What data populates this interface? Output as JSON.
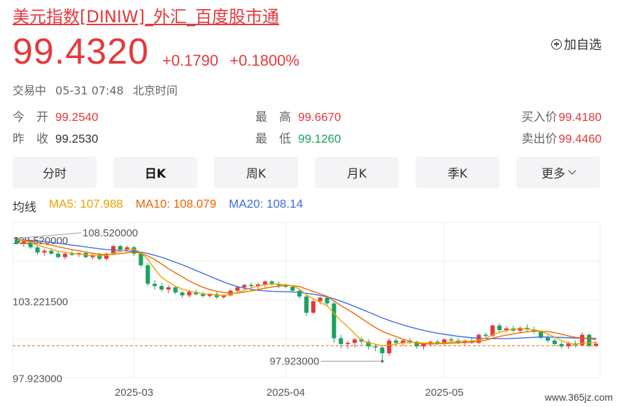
{
  "header": {
    "title": "美元指数[DINIW]_外汇_百度股市通",
    "price": "99.4320",
    "change": "+0.1790",
    "change_pct": "+0.1800%",
    "add_fav_label": "加自选"
  },
  "status": {
    "state": "交易中",
    "datetime": "05-31 07:48",
    "timezone": "北京时间"
  },
  "quotes": {
    "open_label": "今　开",
    "open": "99.2540",
    "prev_close_label": "昨　收",
    "prev_close": "99.2530",
    "high_label": "最　高",
    "high": "99.6670",
    "low_label": "最　低",
    "low": "99.1260",
    "bid_label": "买入价",
    "bid": "99.4180",
    "ask_label": "卖出价",
    "ask": "99.4460"
  },
  "tabs": [
    "分时",
    "日K",
    "周K",
    "月K",
    "季K",
    "更多"
  ],
  "active_tab": "日K",
  "ma": {
    "label": "均线",
    "ma5": "MA5: 107.988",
    "ma10": "MA10: 108.079",
    "ma20": "MA20: 108.14"
  },
  "colors": {
    "up": "#e4393c",
    "down": "#1aa35f",
    "ma5": "#f0a000",
    "ma10": "#f06400",
    "ma20": "#3c6ee6"
  },
  "watermark": "www.365jz.com",
  "chart_data": {
    "type": "candlestick",
    "ylim": [
      96.5,
      109.9
    ],
    "y_ticks": [
      "108.520000",
      "103.221500",
      "97.923000"
    ],
    "y_tick_values": [
      108.52,
      103.2215,
      97.923
    ],
    "x_ticks": [
      "2025-03",
      "2025-04",
      "2025-05"
    ],
    "x_tick_index": [
      17,
      39,
      62
    ],
    "max_label": "108.520000",
    "min_label": "97.923000",
    "max_index": 0,
    "min_index": 53,
    "reference_price": 99.253,
    "ohlc": [
      [
        108.45,
        108.52,
        108.0,
        108.1
      ],
      [
        108.05,
        108.3,
        107.8,
        108.25
      ],
      [
        108.2,
        108.3,
        107.6,
        107.75
      ],
      [
        107.75,
        107.9,
        107.1,
        107.3
      ],
      [
        107.3,
        107.6,
        107.0,
        107.45
      ],
      [
        107.45,
        107.7,
        107.1,
        107.2
      ],
      [
        107.2,
        107.4,
        106.8,
        106.9
      ],
      [
        106.9,
        107.3,
        106.7,
        107.2
      ],
      [
        107.2,
        107.5,
        107.0,
        107.1
      ],
      [
        107.1,
        107.3,
        106.9,
        107.25
      ],
      [
        107.25,
        107.4,
        106.8,
        106.9
      ],
      [
        106.9,
        107.2,
        106.7,
        107.1
      ],
      [
        107.1,
        107.3,
        106.6,
        106.75
      ],
      [
        106.75,
        107.3,
        106.6,
        107.2
      ],
      [
        107.2,
        108.0,
        107.1,
        107.85
      ],
      [
        107.85,
        108.0,
        107.4,
        107.55
      ],
      [
        107.55,
        107.9,
        107.4,
        107.75
      ],
      [
        107.75,
        107.9,
        107.0,
        107.2
      ],
      [
        107.2,
        107.4,
        106.0,
        106.2
      ],
      [
        106.2,
        106.4,
        104.4,
        104.6
      ],
      [
        104.6,
        104.9,
        104.1,
        104.4
      ],
      [
        104.4,
        104.7,
        103.9,
        104.1
      ],
      [
        104.1,
        104.5,
        103.8,
        104.3
      ],
      [
        104.3,
        104.4,
        103.7,
        103.85
      ],
      [
        103.85,
        104.0,
        103.4,
        103.6
      ],
      [
        103.6,
        104.1,
        103.4,
        103.9
      ],
      [
        103.9,
        104.1,
        103.6,
        103.7
      ],
      [
        103.7,
        103.9,
        103.4,
        103.55
      ],
      [
        103.55,
        103.8,
        103.4,
        103.7
      ],
      [
        103.7,
        103.9,
        103.3,
        103.45
      ],
      [
        103.45,
        103.7,
        103.3,
        103.6
      ],
      [
        103.6,
        104.1,
        103.5,
        104.0
      ],
      [
        104.0,
        104.4,
        103.9,
        104.3
      ],
      [
        104.3,
        104.6,
        104.1,
        104.5
      ],
      [
        104.5,
        104.7,
        104.2,
        104.4
      ],
      [
        104.4,
        104.7,
        104.1,
        104.55
      ],
      [
        104.55,
        104.9,
        104.3,
        104.8
      ],
      [
        104.8,
        104.9,
        104.4,
        104.6
      ],
      [
        104.6,
        104.8,
        104.2,
        104.45
      ],
      [
        104.45,
        104.6,
        104.2,
        104.35
      ],
      [
        104.35,
        104.5,
        103.9,
        104.0
      ],
      [
        104.0,
        104.2,
        103.3,
        103.5
      ],
      [
        103.5,
        103.7,
        101.8,
        102.1
      ],
      [
        102.1,
        103.3,
        102.0,
        103.1
      ],
      [
        103.1,
        103.5,
        102.8,
        103.4
      ],
      [
        103.4,
        103.5,
        102.7,
        102.9
      ],
      [
        102.9,
        103.1,
        99.5,
        99.9
      ],
      [
        99.9,
        100.2,
        99.0,
        99.4
      ],
      [
        99.4,
        99.7,
        99.0,
        99.5
      ],
      [
        99.5,
        99.9,
        99.1,
        99.8
      ],
      [
        99.8,
        100.0,
        99.3,
        99.6
      ],
      [
        99.6,
        99.8,
        98.9,
        99.2
      ],
      [
        99.2,
        99.4,
        98.8,
        99.1
      ],
      [
        99.1,
        99.3,
        97.92,
        98.6
      ],
      [
        98.6,
        99.9,
        98.4,
        99.7
      ],
      [
        99.7,
        99.9,
        99.3,
        99.5
      ],
      [
        99.5,
        99.8,
        99.2,
        99.7
      ],
      [
        99.7,
        99.9,
        99.4,
        99.6
      ],
      [
        99.6,
        99.7,
        99.0,
        99.2
      ],
      [
        99.2,
        99.5,
        98.9,
        99.4
      ],
      [
        99.4,
        99.7,
        99.2,
        99.6
      ],
      [
        99.6,
        99.8,
        99.3,
        99.45
      ],
      [
        99.45,
        99.9,
        99.3,
        99.8
      ],
      [
        99.8,
        100.0,
        99.5,
        99.7
      ],
      [
        99.7,
        99.9,
        99.4,
        99.55
      ],
      [
        99.55,
        99.8,
        99.3,
        99.7
      ],
      [
        99.7,
        99.9,
        99.4,
        99.5
      ],
      [
        99.5,
        100.3,
        99.4,
        100.2
      ],
      [
        100.2,
        100.4,
        99.9,
        100.1
      ],
      [
        100.1,
        101.1,
        100.0,
        101.0
      ],
      [
        101.0,
        101.2,
        100.4,
        100.6
      ],
      [
        100.6,
        100.9,
        100.4,
        100.75
      ],
      [
        100.75,
        101.0,
        100.4,
        100.55
      ],
      [
        100.55,
        100.9,
        100.3,
        100.8
      ],
      [
        100.8,
        101.1,
        100.5,
        100.65
      ],
      [
        100.65,
        100.9,
        100.3,
        100.45
      ],
      [
        100.45,
        100.6,
        99.8,
        99.95
      ],
      [
        99.95,
        100.2,
        99.5,
        99.7
      ],
      [
        99.7,
        99.9,
        99.2,
        99.4
      ],
      [
        99.4,
        99.6,
        99.0,
        99.2
      ],
      [
        99.2,
        99.6,
        99.0,
        99.45
      ],
      [
        99.45,
        99.7,
        99.1,
        99.3
      ],
      [
        99.3,
        100.4,
        99.2,
        100.2
      ],
      [
        100.2,
        100.3,
        99.1,
        99.25
      ],
      [
        99.25,
        99.67,
        99.13,
        99.43
      ]
    ],
    "ma5": [
      108.4,
      108.3,
      108.15,
      107.95,
      107.75,
      107.6,
      107.4,
      107.3,
      107.25,
      107.15,
      107.1,
      107.05,
      107.0,
      107.05,
      107.25,
      107.4,
      107.55,
      107.6,
      107.3,
      106.7,
      105.9,
      105.15,
      104.75,
      104.4,
      104.15,
      103.95,
      103.85,
      103.75,
      103.7,
      103.62,
      103.6,
      103.7,
      103.85,
      104.05,
      104.25,
      104.4,
      104.52,
      104.58,
      104.56,
      104.52,
      104.42,
      104.15,
      103.65,
      103.3,
      103.0,
      102.7,
      102.05,
      101.4,
      100.9,
      100.3,
      99.7,
      99.5,
      99.4,
      99.25,
      99.3,
      99.4,
      99.48,
      99.55,
      99.55,
      99.48,
      99.48,
      99.45,
      99.5,
      99.58,
      99.62,
      99.66,
      99.65,
      99.77,
      99.9,
      100.2,
      100.42,
      100.57,
      100.65,
      100.72,
      100.7,
      100.63,
      100.5,
      100.27,
      100.0,
      99.7,
      99.48,
      99.37,
      99.48,
      99.5,
      99.55
    ],
    "ma10": [
      108.4,
      108.35,
      108.28,
      108.18,
      108.05,
      107.93,
      107.8,
      107.68,
      107.55,
      107.45,
      107.33,
      107.23,
      107.15,
      107.12,
      107.15,
      107.2,
      107.28,
      107.33,
      107.25,
      107.0,
      106.7,
      106.3,
      105.9,
      105.55,
      105.2,
      104.85,
      104.55,
      104.3,
      104.1,
      103.95,
      103.85,
      103.8,
      103.8,
      103.88,
      103.98,
      104.1,
      104.22,
      104.32,
      104.4,
      104.45,
      104.45,
      104.36,
      104.14,
      103.93,
      103.74,
      103.52,
      103.12,
      102.72,
      102.37,
      102.0,
      101.6,
      101.2,
      100.82,
      100.5,
      100.25,
      100.05,
      99.82,
      99.62,
      99.48,
      99.42,
      99.4,
      99.42,
      99.44,
      99.47,
      99.5,
      99.53,
      99.56,
      99.64,
      99.73,
      99.9,
      100.05,
      100.17,
      100.28,
      100.38,
      100.46,
      100.5,
      100.5,
      100.47,
      100.38,
      100.25,
      100.1,
      99.98,
      99.92,
      99.86,
      99.8
    ],
    "ma20": [
      108.4,
      108.38,
      108.35,
      108.3,
      108.24,
      108.18,
      108.1,
      108.02,
      107.94,
      107.86,
      107.78,
      107.7,
      107.62,
      107.56,
      107.52,
      107.48,
      107.44,
      107.4,
      107.34,
      107.22,
      107.06,
      106.88,
      106.68,
      106.46,
      106.24,
      106.0,
      105.75,
      105.5,
      105.25,
      105.0,
      104.76,
      104.54,
      104.36,
      104.22,
      104.12,
      104.05,
      103.99,
      103.95,
      103.93,
      103.91,
      103.89,
      103.85,
      103.78,
      103.7,
      103.6,
      103.48,
      103.3,
      103.1,
      102.88,
      102.64,
      102.4,
      102.15,
      101.9,
      101.66,
      101.44,
      101.24,
      101.05,
      100.88,
      100.72,
      100.58,
      100.45,
      100.34,
      100.24,
      100.15,
      100.07,
      100.0,
      99.94,
      99.9,
      99.87,
      99.86,
      99.86,
      99.87,
      99.89,
      99.92,
      99.95,
      99.98,
      100.0,
      100.0,
      99.99,
      99.97,
      99.94,
      99.92,
      99.91,
      99.9,
      99.89
    ]
  }
}
